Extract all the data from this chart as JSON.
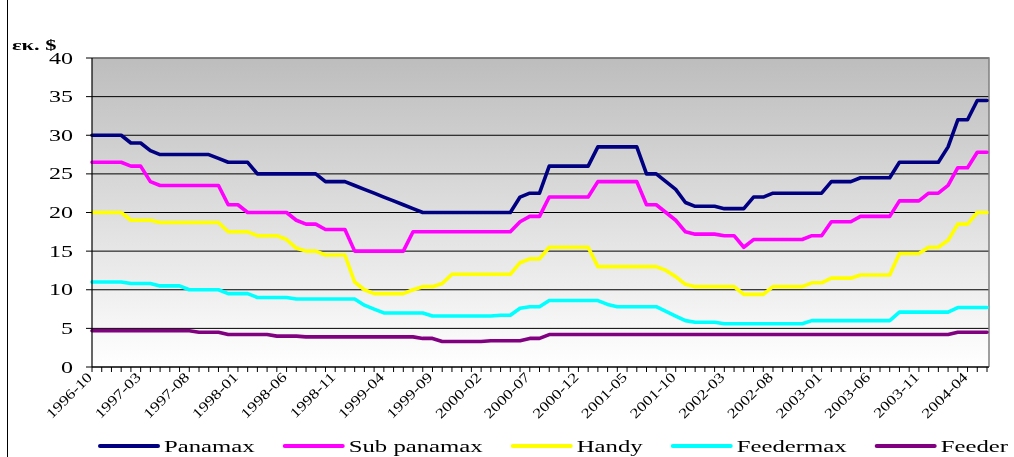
{
  "chart_data": {
    "type": "line",
    "ylabel": "εκ. $",
    "categories": [
      "1996-10",
      null,
      null,
      null,
      null,
      "1997-03",
      null,
      null,
      null,
      null,
      "1997-08",
      null,
      null,
      null,
      null,
      "1998-01",
      null,
      null,
      null,
      null,
      "1998-06",
      null,
      null,
      null,
      null,
      "1998-11",
      null,
      null,
      null,
      null,
      "1999-04",
      null,
      null,
      null,
      null,
      "1999-09",
      null,
      null,
      null,
      null,
      "2000-02",
      null,
      null,
      null,
      null,
      "2000-07",
      null,
      null,
      null,
      null,
      "2000-12",
      null,
      null,
      null,
      null,
      "2001-05",
      null,
      null,
      null,
      null,
      "2001-10",
      null,
      null,
      null,
      null,
      "2002-03",
      null,
      null,
      null,
      null,
      "2002-08",
      null,
      null,
      null,
      null,
      "2003-01",
      null,
      null,
      null,
      null,
      "2003-06",
      null,
      null,
      null,
      null,
      "2003-11",
      null,
      null,
      null,
      null,
      "2004-04",
      null,
      null
    ],
    "series": [
      {
        "name": "Panamax",
        "color": "#000080",
        "values": [
          30,
          30,
          30,
          30,
          29,
          29,
          28,
          27.5,
          27.5,
          27.5,
          27.5,
          27.5,
          27.5,
          27,
          26.5,
          26.5,
          26.5,
          25,
          25,
          25,
          25,
          25,
          25,
          25,
          24,
          24,
          24,
          23.5,
          23,
          22.5,
          22,
          21.5,
          21,
          20.5,
          20,
          20,
          20,
          20,
          20,
          20,
          20,
          20,
          20,
          20,
          22,
          22.5,
          22.5,
          26,
          26,
          26,
          26,
          26,
          28.5,
          28.5,
          28.5,
          28.5,
          28.5,
          25,
          25,
          24,
          23,
          21.3,
          20.8,
          20.8,
          20.8,
          20.5,
          20.5,
          20.5,
          22,
          22,
          22.5,
          22.5,
          22.5,
          22.5,
          22.5,
          22.5,
          24,
          24,
          24,
          24.5,
          24.5,
          24.5,
          24.5,
          26.5,
          26.5,
          26.5,
          26.5,
          26.5,
          28.5,
          32,
          32,
          34.5,
          34.5
        ]
      },
      {
        "name": "Sub panamax",
        "color": "#ff00ff",
        "values": [
          26.5,
          26.5,
          26.5,
          26.5,
          26,
          26,
          24,
          23.5,
          23.5,
          23.5,
          23.5,
          23.5,
          23.5,
          23.5,
          21,
          21,
          20,
          20,
          20,
          20,
          20,
          19,
          18.5,
          18.5,
          17.8,
          17.8,
          17.8,
          15,
          15,
          15,
          15,
          15,
          15,
          17.5,
          17.5,
          17.5,
          17.5,
          17.5,
          17.5,
          17.5,
          17.5,
          17.5,
          17.5,
          17.5,
          18.8,
          19.5,
          19.5,
          22,
          22,
          22,
          22,
          22,
          24,
          24,
          24,
          24,
          24,
          21,
          21,
          20,
          19,
          17.5,
          17.2,
          17.2,
          17.2,
          17,
          17,
          15.5,
          16.5,
          16.5,
          16.5,
          16.5,
          16.5,
          16.5,
          17,
          17,
          18.8,
          18.8,
          18.8,
          19.5,
          19.5,
          19.5,
          19.5,
          21.5,
          21.5,
          21.5,
          22.5,
          22.5,
          23.5,
          25.8,
          25.8,
          27.8,
          27.8
        ]
      },
      {
        "name": "Handy",
        "color": "#ffff00",
        "values": [
          20,
          20,
          20,
          20,
          19,
          19,
          19,
          18.7,
          18.7,
          18.7,
          18.7,
          18.7,
          18.7,
          18.7,
          17.5,
          17.5,
          17.5,
          17,
          17,
          17,
          16.5,
          15.4,
          15,
          15,
          14.5,
          14.5,
          14.5,
          11,
          10,
          9.5,
          9.5,
          9.5,
          9.5,
          10,
          10.4,
          10.4,
          10.8,
          12,
          12,
          12,
          12,
          12,
          12,
          12,
          13.5,
          14,
          14,
          15.5,
          15.5,
          15.5,
          15.5,
          15.5,
          13,
          13,
          13,
          13,
          13,
          13,
          13,
          12.5,
          11.7,
          10.7,
          10.4,
          10.4,
          10.4,
          10.4,
          10.4,
          9.4,
          9.4,
          9.4,
          10.4,
          10.4,
          10.4,
          10.4,
          10.9,
          10.9,
          11.5,
          11.5,
          11.5,
          11.9,
          11.9,
          11.9,
          11.9,
          14.7,
          14.7,
          14.7,
          15.5,
          15.5,
          16.4,
          18.5,
          18.5,
          20,
          20
        ]
      },
      {
        "name": "Feedermax",
        "color": "#00ffff",
        "values": [
          11,
          11,
          11,
          11,
          10.8,
          10.8,
          10.8,
          10.5,
          10.5,
          10.5,
          10,
          10,
          10,
          10,
          9.5,
          9.5,
          9.5,
          9,
          9,
          9,
          9,
          8.8,
          8.8,
          8.8,
          8.8,
          8.8,
          8.8,
          8.8,
          8,
          7.5,
          7,
          7,
          7,
          7,
          7,
          6.6,
          6.6,
          6.6,
          6.6,
          6.6,
          6.6,
          6.6,
          6.7,
          6.7,
          7.6,
          7.8,
          7.8,
          8.6,
          8.6,
          8.6,
          8.6,
          8.6,
          8.6,
          8.1,
          7.8,
          7.8,
          7.8,
          7.8,
          7.8,
          7.2,
          6.6,
          6,
          5.8,
          5.8,
          5.8,
          5.6,
          5.6,
          5.6,
          5.6,
          5.6,
          5.6,
          5.6,
          5.6,
          5.6,
          6,
          6,
          6,
          6,
          6,
          6,
          6,
          6,
          6,
          7.1,
          7.1,
          7.1,
          7.1,
          7.1,
          7.1,
          7.7,
          7.7,
          7.7,
          7.7
        ]
      },
      {
        "name": "Feeder",
        "color": "#800080",
        "values": [
          4.7,
          4.7,
          4.7,
          4.7,
          4.7,
          4.7,
          4.7,
          4.7,
          4.7,
          4.7,
          4.7,
          4.5,
          4.5,
          4.5,
          4.2,
          4.2,
          4.2,
          4.2,
          4.2,
          4,
          4,
          4,
          3.9,
          3.9,
          3.9,
          3.9,
          3.9,
          3.9,
          3.9,
          3.9,
          3.9,
          3.9,
          3.9,
          3.9,
          3.7,
          3.7,
          3.3,
          3.3,
          3.3,
          3.3,
          3.3,
          3.4,
          3.4,
          3.4,
          3.4,
          3.7,
          3.7,
          4.2,
          4.2,
          4.2,
          4.2,
          4.2,
          4.2,
          4.2,
          4.2,
          4.2,
          4.2,
          4.2,
          4.2,
          4.2,
          4.2,
          4.2,
          4.2,
          4.2,
          4.2,
          4.2,
          4.2,
          4.2,
          4.2,
          4.2,
          4.2,
          4.2,
          4.2,
          4.2,
          4.2,
          4.2,
          4.2,
          4.2,
          4.2,
          4.2,
          4.2,
          4.2,
          4.2,
          4.2,
          4.2,
          4.2,
          4.2,
          4.2,
          4.2,
          4.5,
          4.5,
          4.5,
          4.5
        ]
      }
    ],
    "ylim": [
      0,
      40
    ],
    "yticks": [
      0,
      5,
      10,
      15,
      20,
      25,
      30,
      35,
      40
    ],
    "grid": "y",
    "legend": "bottom",
    "line_style": "solid"
  }
}
